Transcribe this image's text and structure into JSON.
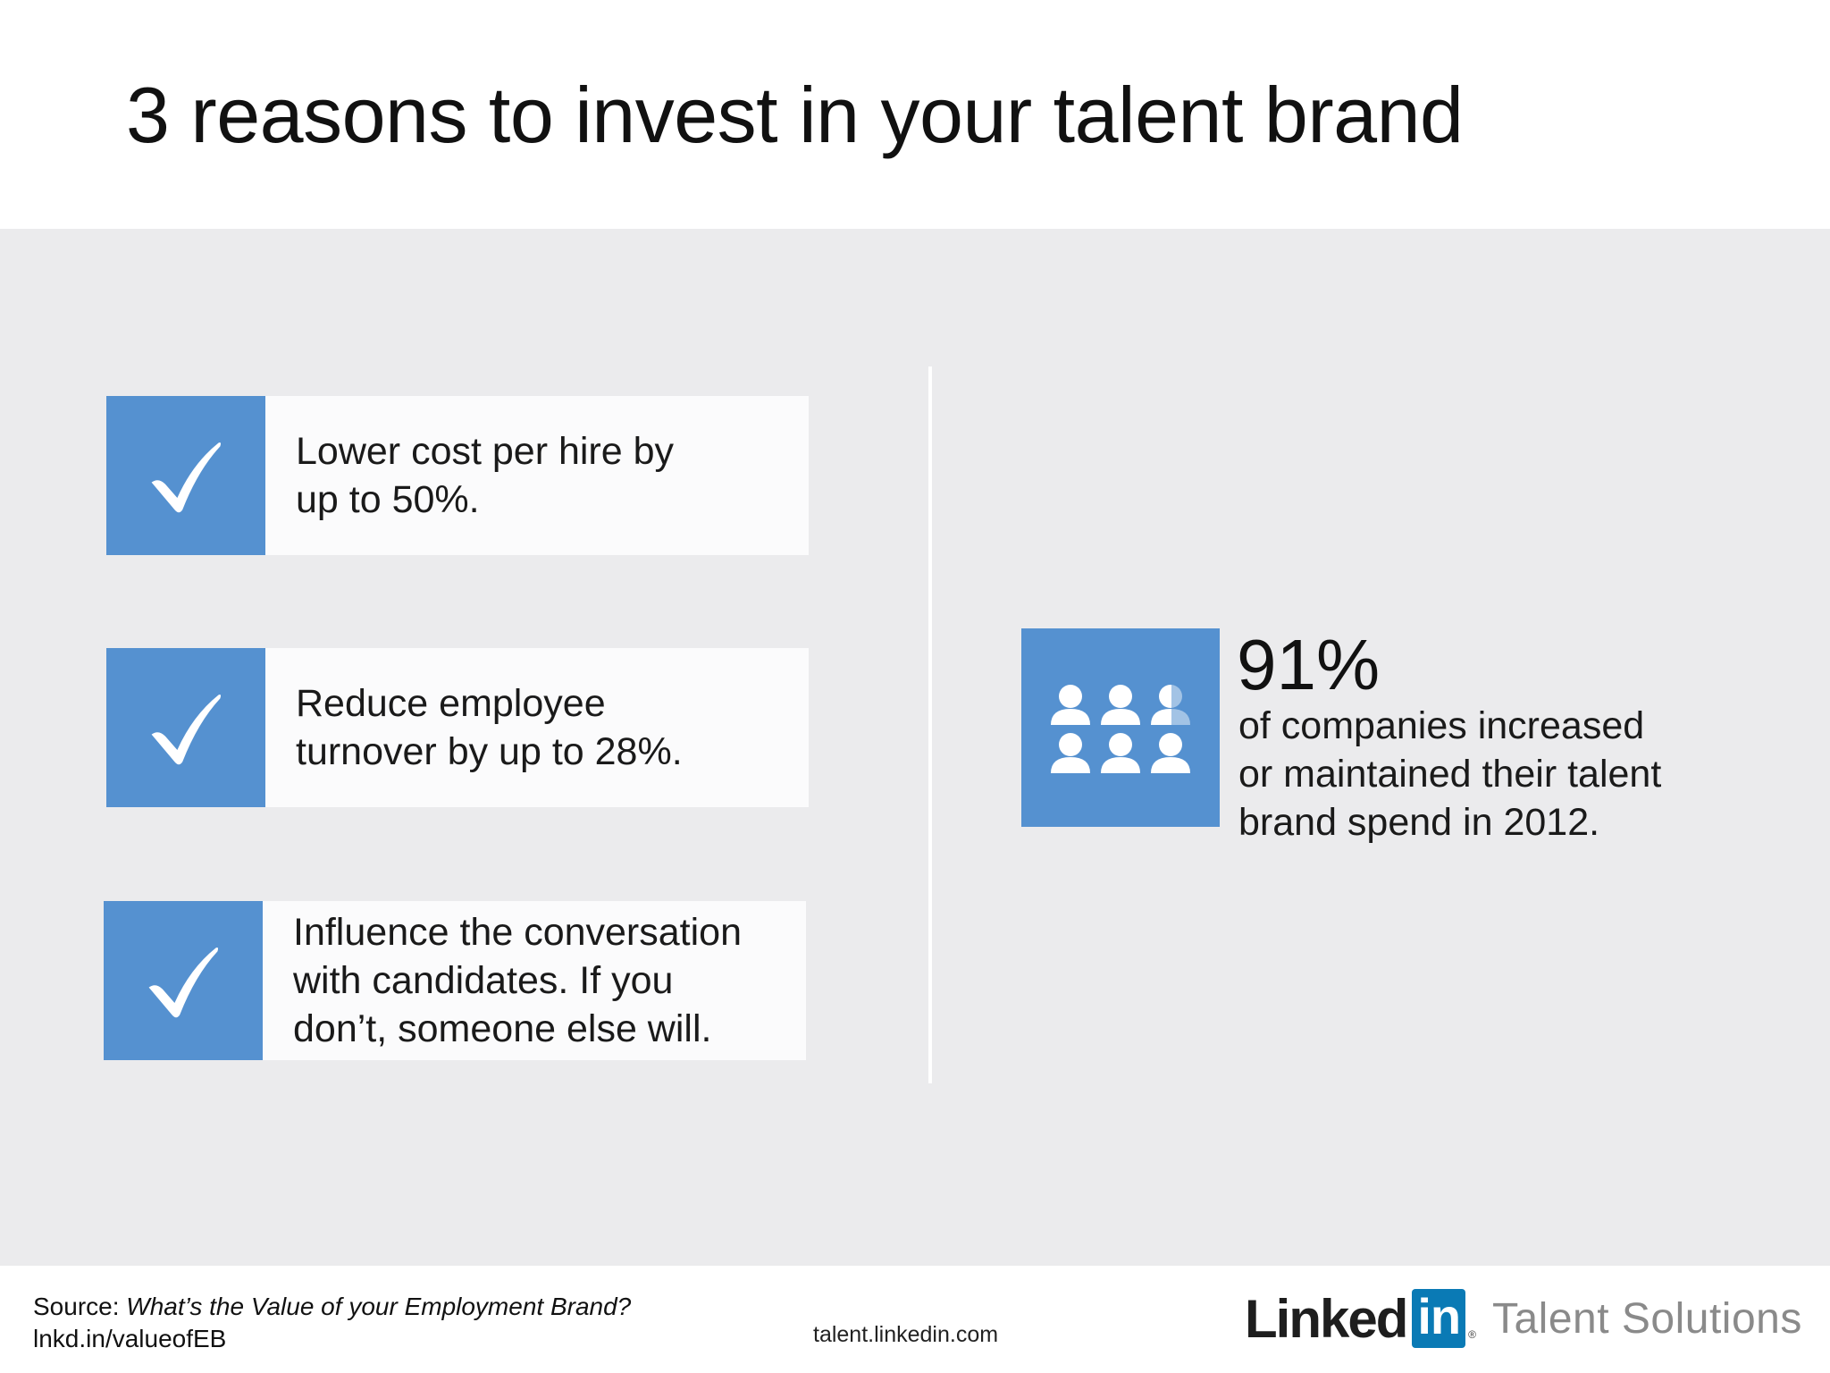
{
  "title": "3 reasons to invest in your talent brand",
  "reasons": [
    {
      "icon": "checkmark-icon",
      "line1": "Lower cost per hire by",
      "line2": "up to 50%.",
      "line3": ""
    },
    {
      "icon": "checkmark-icon",
      "line1": "Reduce employee",
      "line2": "turnover by up to 28%.",
      "line3": ""
    },
    {
      "icon": "checkmark-icon",
      "line1": "Influence the conversation",
      "line2": "with candidates. If you",
      "line3": "don’t, someone else will."
    }
  ],
  "stat": {
    "icon": "people-group-icon",
    "value": "91%",
    "line1": "of companies increased",
    "line2": "or maintained their talent",
    "line3": "brand spend in 2012."
  },
  "footer": {
    "source_label": "Source: ",
    "source_title": "What’s the Value of your Employment Brand?",
    "short_link": "lnkd.in/valueofEB",
    "site": "talent.linkedin.com",
    "brand_linked": "Linked",
    "brand_in": "in",
    "brand_reg": "®",
    "brand_product": "Talent Solutions"
  },
  "colors": {
    "accent_blue": "#5591d0",
    "panel_gray": "#ebebed",
    "linkedin_blue": "#0a7ab5"
  }
}
